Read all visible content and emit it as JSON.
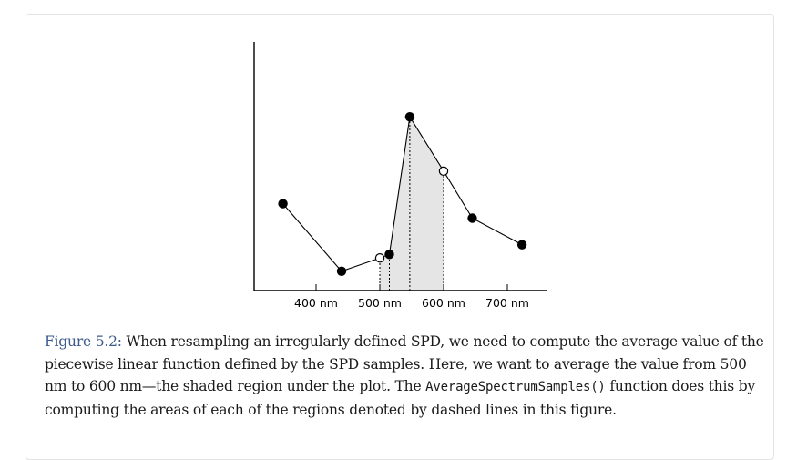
{
  "figure": {
    "label": "Figure 5.2:",
    "caption_part1": " When resampling an irregularly defined SPD, we need to compute the average value of the piecewise linear function defined by the SPD samples. Here, we want to average the value from 500 nm to 600 nm—the shaded region under the plot. The ",
    "caption_code": "AverageSpectrumSamples()",
    "caption_part2": " function does this by computing the areas of each of the regions denoted by dashed lines in this figure."
  },
  "chart_data": {
    "type": "line",
    "title": "",
    "xlabel": "",
    "ylabel": "",
    "x_unit": "nm",
    "x_ticks": [
      {
        "value": 400,
        "label": "400 nm"
      },
      {
        "value": 500,
        "label": "500 nm"
      },
      {
        "value": 600,
        "label": "600 nm"
      },
      {
        "value": 700,
        "label": "700 nm"
      }
    ],
    "shaded_range": [
      500,
      600
    ],
    "series": [
      {
        "points": [
          {
            "x": 348,
            "y": 0.36,
            "marker": "filled"
          },
          {
            "x": 440,
            "y": 0.08,
            "marker": "filled"
          },
          {
            "x": 500,
            "y": 0.135,
            "marker": "open"
          },
          {
            "x": 515,
            "y": 0.15,
            "marker": "filled"
          },
          {
            "x": 547,
            "y": 0.72,
            "marker": "filled"
          },
          {
            "x": 600,
            "y": 0.495,
            "marker": "open"
          },
          {
            "x": 645,
            "y": 0.3,
            "marker": "filled"
          },
          {
            "x": 723,
            "y": 0.19,
            "marker": "filled"
          }
        ]
      }
    ],
    "dashed_x": [
      500,
      515,
      547,
      600
    ],
    "xlim": [
      305,
      773
    ],
    "ylim": [
      0,
      1
    ],
    "grid": false
  }
}
